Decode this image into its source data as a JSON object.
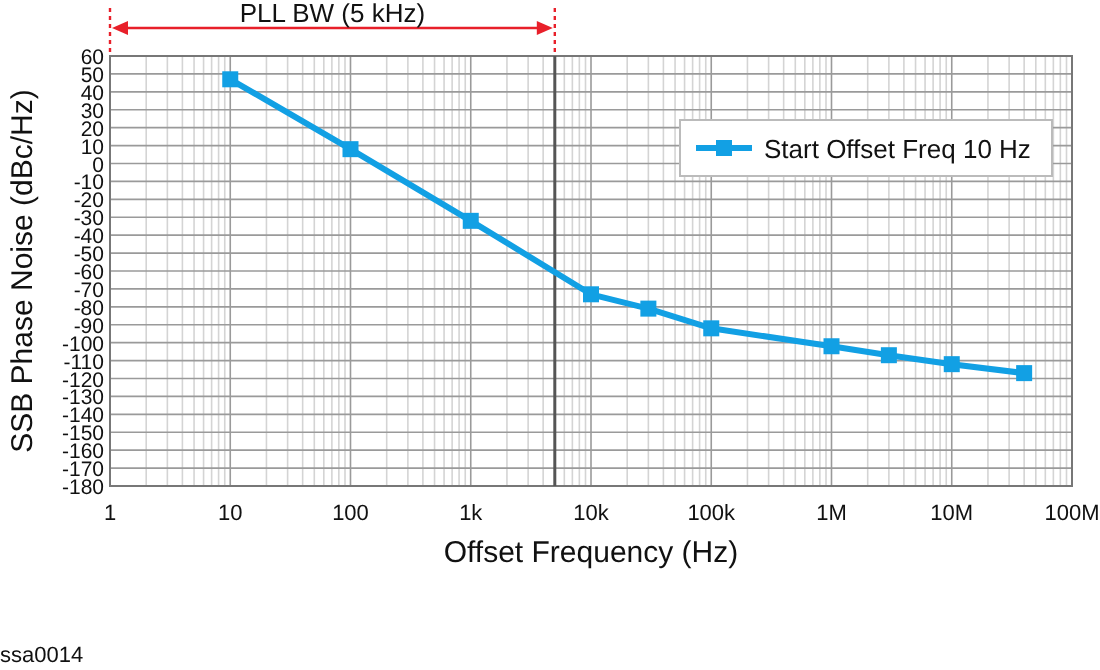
{
  "chart_data": {
    "type": "line",
    "xlabel": "Offset Frequency (Hz)",
    "ylabel": "SSB Phase Noise (dBc/Hz)",
    "x": [
      10,
      100,
      1000,
      10000,
      30000,
      100000,
      1000000,
      3000000,
      10000000,
      40000000
    ],
    "series": [
      {
        "name": "Start Offset Freq 10 Hz",
        "color": "#12a0e4",
        "values": [
          47,
          8,
          -32,
          -73,
          -81,
          -92,
          -102,
          -107,
          -112,
          -117
        ]
      }
    ],
    "log": "x",
    "xlim": [
      1,
      100000000
    ],
    "xticks": [
      1,
      10,
      100,
      {
        "value": 1000,
        "label": "1k"
      },
      {
        "value": 10000,
        "label": "10k"
      },
      {
        "value": 100000,
        "label": "100k"
      },
      {
        "value": 1000000,
        "label": "1M"
      },
      {
        "value": 10000000,
        "label": "10M"
      },
      {
        "value": 100000000,
        "label": "100M"
      }
    ],
    "ylim": [
      -180,
      60
    ],
    "yticks": [
      -180,
      -170,
      -160,
      -150,
      -140,
      -130,
      -120,
      -110,
      -100,
      -90,
      -80,
      -70,
      -60,
      -50,
      -40,
      -30,
      -20,
      -10,
      0,
      10,
      20,
      30,
      40,
      50,
      60
    ],
    "grid": true,
    "legend": "top right",
    "marker": "square",
    "line_style": "solid",
    "ref_lines": [
      {
        "axis": "x",
        "value": 5000,
        "color": "#555555"
      }
    ],
    "annotations": [
      "PLL BW (5 kHz)",
      "ssa0014"
    ]
  }
}
